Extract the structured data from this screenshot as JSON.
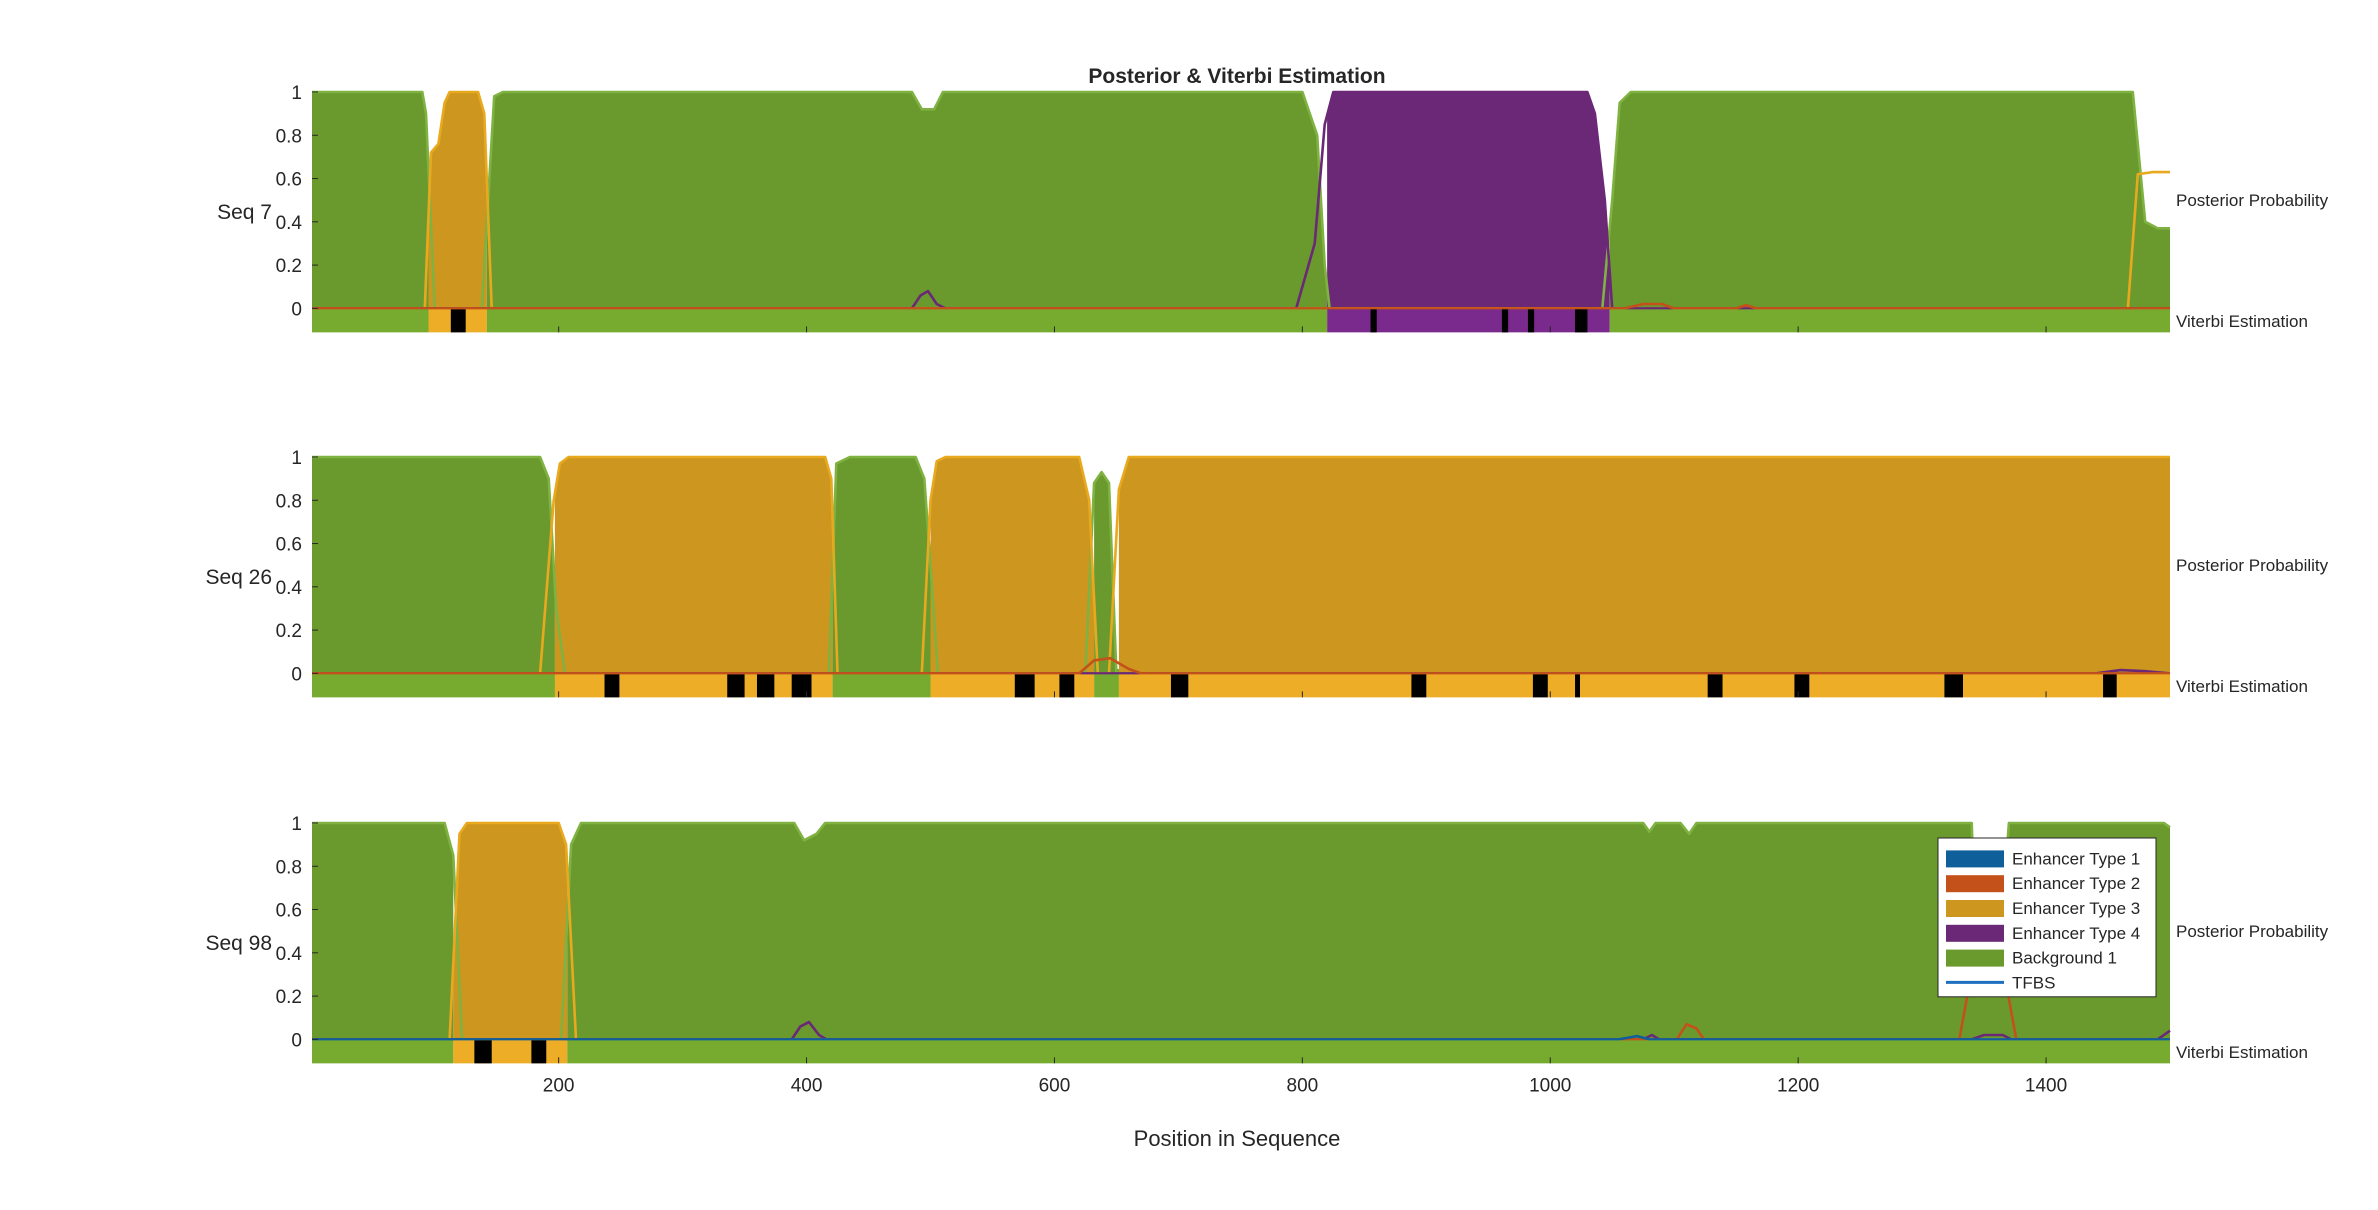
{
  "chart_data": {
    "type": "area",
    "title": "Posterior & Viterbi Estimation",
    "xlabel": "Position in Sequence",
    "xlim": [
      1,
      1500
    ],
    "ylim": [
      -0.1,
      1
    ],
    "x_ticks": [
      200,
      400,
      600,
      800,
      1000,
      1200,
      1400
    ],
    "y_ticks": [
      0,
      0.2,
      0.4,
      0.6,
      0.8,
      1
    ],
    "posterior_label": "Posterior Probability",
    "viterbi_label": "Viterbi Estimation",
    "colors": {
      "Enhancer Type 1": "#0f5f9b",
      "Enhancer Type 2": "#c4501a",
      "Enhancer Type 3": "#cc961f",
      "Enhancer Type 4": "#6a2876",
      "Background 1": "#6a9a2e",
      "TFBS": "#1f6fbf",
      "viterbi_background": "#76ab2f",
      "viterbi_type3": "#eead26",
      "viterbi_type4": "#7a2a8c",
      "viterbi_tfbs": "#000000"
    },
    "legend": {
      "position": "right-inside-bottom-panel",
      "entries": [
        {
          "label": "Enhancer Type 1",
          "kind": "patch"
        },
        {
          "label": "Enhancer Type 2",
          "kind": "patch"
        },
        {
          "label": "Enhancer Type 3",
          "kind": "patch"
        },
        {
          "label": "Enhancer Type 4",
          "kind": "patch"
        },
        {
          "label": "Background 1",
          "kind": "patch"
        },
        {
          "label": "TFBS",
          "kind": "line"
        }
      ]
    },
    "panels": [
      {
        "label": "Seq 7",
        "segments": [
          {
            "state": "Background 1",
            "start": 1,
            "end": 95
          },
          {
            "state": "Enhancer Type 3",
            "start": 95,
            "end": 142
          },
          {
            "state": "Background 1",
            "start": 142,
            "end": 820
          },
          {
            "state": "Enhancer Type 4",
            "start": 820,
            "end": 1048
          },
          {
            "state": "Background 1",
            "start": 1048,
            "end": 1500
          }
        ],
        "tfbs": [
          [
            113,
            125
          ],
          [
            855,
            860
          ],
          [
            961,
            966
          ],
          [
            982,
            987
          ],
          [
            1020,
            1030
          ]
        ],
        "posterior": {
          "Background 1": [
            [
              1,
              1
            ],
            [
              90,
              1
            ],
            [
              93,
              0.9
            ],
            [
              100,
              0
            ],
            [
              138,
              0
            ],
            [
              148,
              0.98
            ],
            [
              155,
              1
            ],
            [
              485,
              1
            ],
            [
              493,
              0.92
            ],
            [
              503,
              0.92
            ],
            [
              510,
              1
            ],
            [
              800,
              1
            ],
            [
              812,
              0.8
            ],
            [
              818,
              0.2
            ],
            [
              822,
              0
            ],
            [
              1042,
              0
            ],
            [
              1050,
              0.5
            ],
            [
              1056,
              0.95
            ],
            [
              1065,
              1
            ],
            [
              1470,
              1
            ],
            [
              1480,
              0.4
            ],
            [
              1490,
              0.37
            ],
            [
              1500,
              0.37
            ]
          ],
          "Enhancer Type 3": [
            [
              1,
              0
            ],
            [
              92,
              0
            ],
            [
              97,
              0.72
            ],
            [
              103,
              0.76
            ],
            [
              108,
              0.95
            ],
            [
              112,
              1
            ],
            [
              135,
              1
            ],
            [
              140,
              0.9
            ],
            [
              146,
              0
            ],
            [
              1466,
              0
            ],
            [
              1474,
              0.62
            ],
            [
              1486,
              0.63
            ],
            [
              1500,
              0.63
            ]
          ],
          "Enhancer Type 4": [
            [
              1,
              0
            ],
            [
              485,
              0
            ],
            [
              492,
              0.06
            ],
            [
              498,
              0.08
            ],
            [
              505,
              0.02
            ],
            [
              512,
              0
            ],
            [
              795,
              0
            ],
            [
              810,
              0.3
            ],
            [
              818,
              0.85
            ],
            [
              825,
              1
            ],
            [
              1030,
              1
            ],
            [
              1036,
              0.9
            ],
            [
              1044,
              0.5
            ],
            [
              1050,
              0
            ],
            [
              1500,
              0
            ]
          ],
          "Enhancer Type 2": [
            [
              1,
              0
            ],
            [
              1060,
              0
            ],
            [
              1075,
              0.02
            ],
            [
              1090,
              0.02
            ],
            [
              1100,
              0
            ],
            [
              1150,
              0
            ],
            [
              1158,
              0.015
            ],
            [
              1166,
              0
            ],
            [
              1500,
              0
            ]
          ]
        }
      },
      {
        "label": "Seq 26",
        "segments": [
          {
            "state": "Background 1",
            "start": 1,
            "end": 197
          },
          {
            "state": "Enhancer Type 3",
            "start": 197,
            "end": 421
          },
          {
            "state": "Background 1",
            "start": 421,
            "end": 500
          },
          {
            "state": "Enhancer Type 3",
            "start": 500,
            "end": 632
          },
          {
            "state": "Background 1",
            "start": 632,
            "end": 652
          },
          {
            "state": "Enhancer Type 3",
            "start": 652,
            "end": 1500
          }
        ],
        "tfbs": [
          [
            237,
            249
          ],
          [
            336,
            350
          ],
          [
            360,
            374
          ],
          [
            388,
            404
          ],
          [
            568,
            584
          ],
          [
            604,
            616
          ],
          [
            694,
            708
          ],
          [
            888,
            900
          ],
          [
            986,
            998
          ],
          [
            1020,
            1024
          ],
          [
            1127,
            1139
          ],
          [
            1197,
            1209
          ],
          [
            1318,
            1333
          ],
          [
            1446,
            1457
          ]
        ],
        "posterior": {
          "Background 1": [
            [
              1,
              1
            ],
            [
              185,
              1
            ],
            [
              192,
              0.9
            ],
            [
              198,
              0.3
            ],
            [
              205,
              0
            ],
            [
              418,
              0
            ],
            [
              424,
              0.97
            ],
            [
              435,
              1
            ],
            [
              488,
              1
            ],
            [
              495,
              0.9
            ],
            [
              500,
              0.5
            ],
            [
              506,
              0
            ],
            [
              625,
              0
            ],
            [
              632,
              0.88
            ],
            [
              638,
              0.93
            ],
            [
              644,
              0.88
            ],
            [
              650,
              0
            ],
            [
              1500,
              0
            ]
          ],
          "Enhancer Type 3": [
            [
              1,
              0
            ],
            [
              185,
              0
            ],
            [
              196,
              0.8
            ],
            [
              201,
              0.97
            ],
            [
              208,
              1
            ],
            [
              415,
              1
            ],
            [
              420,
              0.9
            ],
            [
              425,
              0
            ],
            [
              493,
              0
            ],
            [
              500,
              0.8
            ],
            [
              505,
              0.98
            ],
            [
              512,
              1
            ],
            [
              620,
              1
            ],
            [
              628,
              0.8
            ],
            [
              635,
              0
            ],
            [
              644,
              0
            ],
            [
              652,
              0.85
            ],
            [
              660,
              1
            ],
            [
              1500,
              1
            ]
          ],
          "Enhancer Type 2": [
            [
              1,
              0
            ],
            [
              620,
              0
            ],
            [
              632,
              0.06
            ],
            [
              645,
              0.07
            ],
            [
              660,
              0.02
            ],
            [
              670,
              0
            ],
            [
              1500,
              0
            ]
          ],
          "Enhancer Type 4": [
            [
              1,
              0
            ],
            [
              1440,
              0
            ],
            [
              1460,
              0.015
            ],
            [
              1480,
              0.01
            ],
            [
              1500,
              0
            ]
          ]
        }
      },
      {
        "label": "Seq 98",
        "segments": [
          {
            "state": "Background 1",
            "start": 1,
            "end": 115
          },
          {
            "state": "Enhancer Type 3",
            "start": 115,
            "end": 207
          },
          {
            "state": "Background 1",
            "start": 207,
            "end": 1500
          }
        ],
        "tfbs": [
          [
            132,
            146
          ],
          [
            178,
            190
          ]
        ],
        "posterior": {
          "Background 1": [
            [
              1,
              1
            ],
            [
              108,
              1
            ],
            [
              115,
              0.85
            ],
            [
              122,
              0
            ],
            [
              202,
              0
            ],
            [
              210,
              0.9
            ],
            [
              218,
              1
            ],
            [
              390,
              1
            ],
            [
              398,
              0.92
            ],
            [
              408,
              0.95
            ],
            [
              415,
              1
            ],
            [
              1075,
              1
            ],
            [
              1080,
              0.96
            ],
            [
              1085,
              1
            ],
            [
              1105,
              1
            ],
            [
              1112,
              0.95
            ],
            [
              1118,
              1
            ],
            [
              1340,
              1
            ],
            [
              1345,
              0.2
            ],
            [
              1360,
              0.2
            ],
            [
              1370,
              1
            ],
            [
              1495,
              1
            ],
            [
              1500,
              0.98
            ]
          ],
          "Enhancer Type 3": [
            [
              1,
              0
            ],
            [
              112,
              0
            ],
            [
              120,
              0.95
            ],
            [
              126,
              1
            ],
            [
              200,
              1
            ],
            [
              206,
              0.9
            ],
            [
              214,
              0
            ],
            [
              1500,
              0
            ]
          ],
          "Enhancer Type 4": [
            [
              1,
              0
            ],
            [
              388,
              0
            ],
            [
              395,
              0.06
            ],
            [
              402,
              0.08
            ],
            [
              410,
              0.02
            ],
            [
              416,
              0
            ],
            [
              1075,
              0
            ],
            [
              1082,
              0.02
            ],
            [
              1088,
              0
            ],
            [
              1340,
              0
            ],
            [
              1350,
              0.02
            ],
            [
              1365,
              0.02
            ],
            [
              1372,
              0
            ],
            [
              1490,
              0
            ],
            [
              1500,
              0.04
            ]
          ],
          "Enhancer Type 2": [
            [
              1,
              0
            ],
            [
              1102,
              0
            ],
            [
              1110,
              0.07
            ],
            [
              1118,
              0.05
            ],
            [
              1124,
              0
            ],
            [
              1330,
              0
            ],
            [
              1338,
              0.25
            ],
            [
              1345,
              0.3
            ],
            [
              1360,
              0.3
            ],
            [
              1368,
              0.25
            ],
            [
              1376,
              0
            ],
            [
              1500,
              0
            ]
          ],
          "Enhancer Type 1": [
            [
              1,
              0
            ],
            [
              1055,
              0
            ],
            [
              1070,
              0.015
            ],
            [
              1080,
              0
            ],
            [
              1500,
              0
            ]
          ]
        }
      }
    ]
  }
}
